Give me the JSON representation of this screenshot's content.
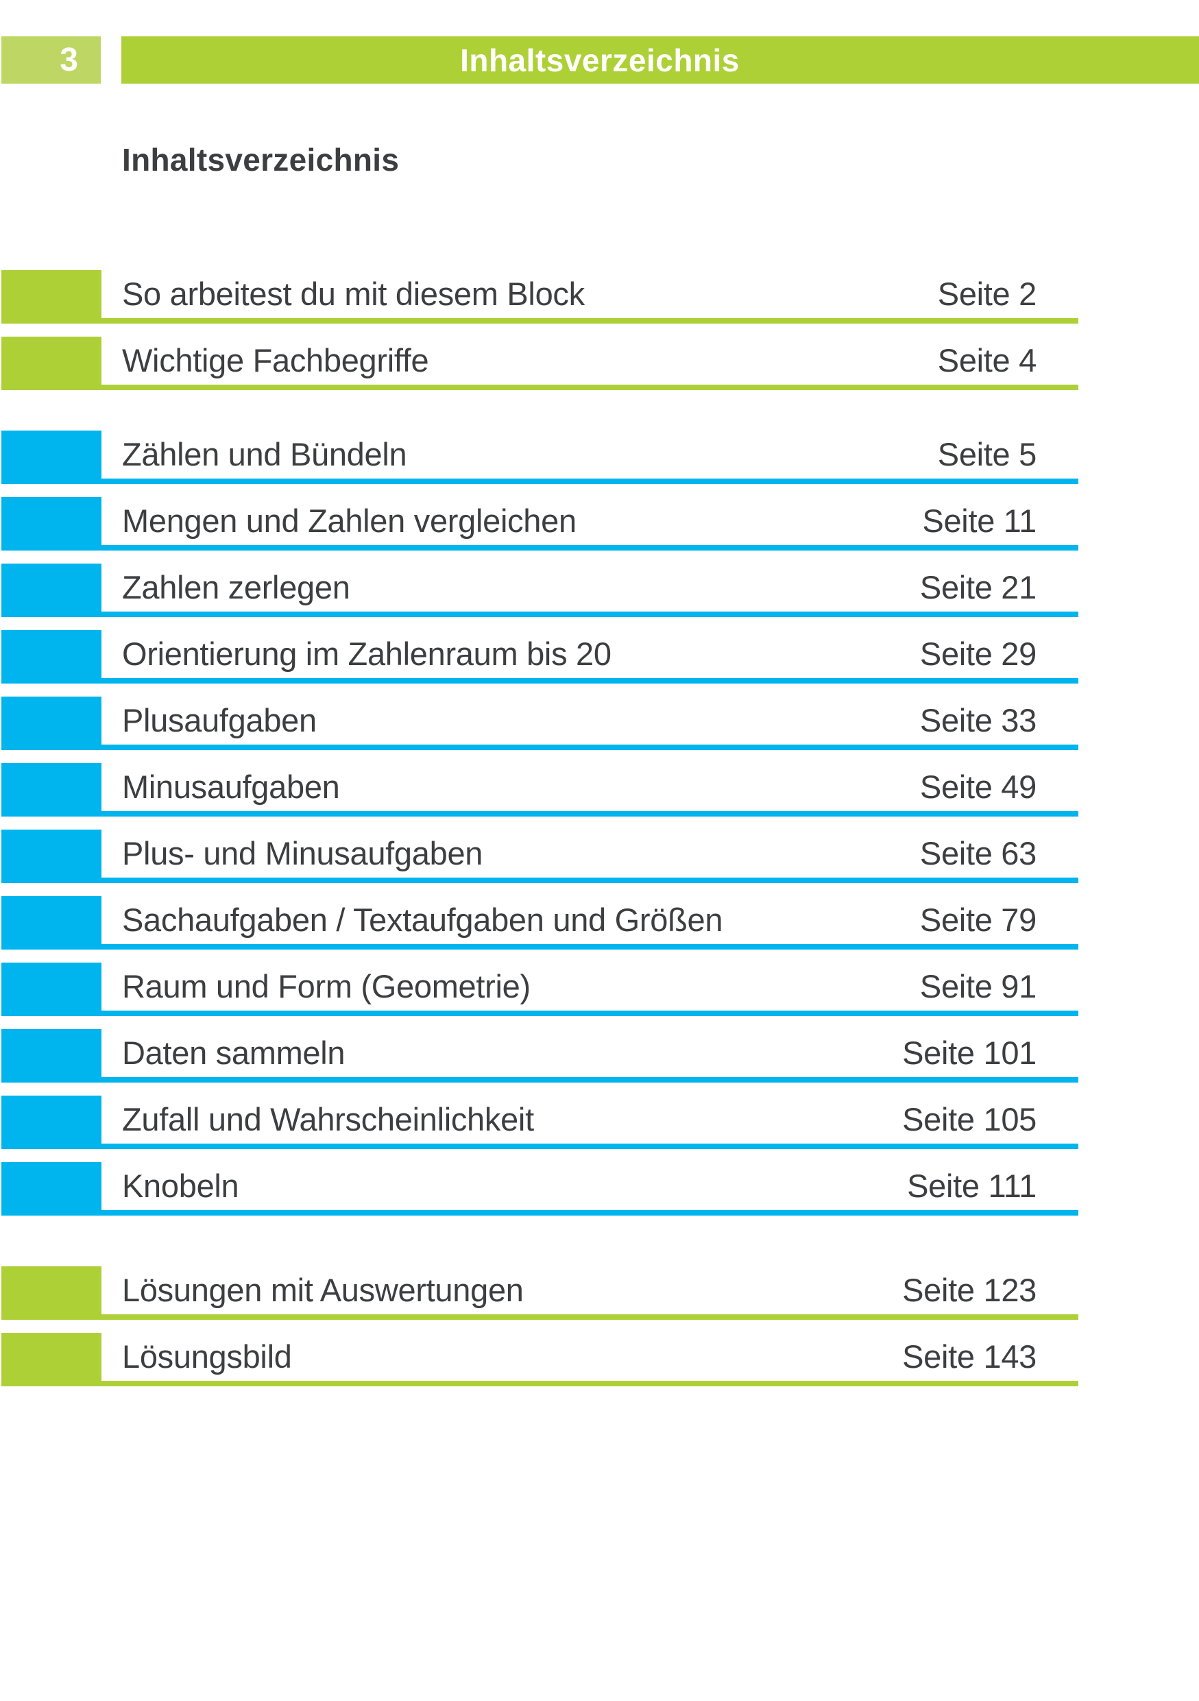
{
  "page": {
    "page_number": "3",
    "header_title": "Inhaltsverzeichnis",
    "section_heading": "Inhaltsverzeichnis"
  },
  "colors": {
    "green": "#aed037",
    "light_green": "#bed664",
    "blue": "#00b5ee",
    "text": "#3c3e40",
    "white": "#ffffff"
  },
  "toc": {
    "sections": [
      {
        "name": "intro",
        "color_key": "green",
        "items": [
          {
            "title": "So arbeitest du mit diesem Block",
            "page_label": "Seite 2"
          },
          {
            "title": "Wichtige Fachbegriffe",
            "page_label": "Seite 4"
          }
        ]
      },
      {
        "name": "main-topics",
        "color_key": "blue",
        "items": [
          {
            "title": "Zählen und Bündeln",
            "page_label": "Seite 5"
          },
          {
            "title": "Mengen und Zahlen vergleichen",
            "page_label": "Seite 11"
          },
          {
            "title": "Zahlen zerlegen",
            "page_label": "Seite 21"
          },
          {
            "title": "Orientierung im Zahlenraum bis 20",
            "page_label": "Seite 29"
          },
          {
            "title": "Plusaufgaben",
            "page_label": "Seite 33"
          },
          {
            "title": "Minusaufgaben",
            "page_label": "Seite 49"
          },
          {
            "title": "Plus- und Minusaufgaben",
            "page_label": "Seite 63"
          },
          {
            "title": "Sachaufgaben / Textaufgaben und Größen",
            "page_label": "Seite 79"
          },
          {
            "title": "Raum und Form (Geometrie)",
            "page_label": "Seite 91"
          },
          {
            "title": "Daten sammeln",
            "page_label": "Seite 101"
          },
          {
            "title": "Zufall und Wahrscheinlichkeit",
            "page_label": "Seite 105"
          },
          {
            "title": "Knobeln",
            "page_label": "Seite 111"
          }
        ]
      },
      {
        "name": "solutions",
        "color_key": "green",
        "items": [
          {
            "title": "Lösungen mit Auswertungen",
            "page_label": "Seite 123"
          },
          {
            "title": "Lösungsbild",
            "page_label": "Seite 143"
          }
        ]
      }
    ]
  }
}
